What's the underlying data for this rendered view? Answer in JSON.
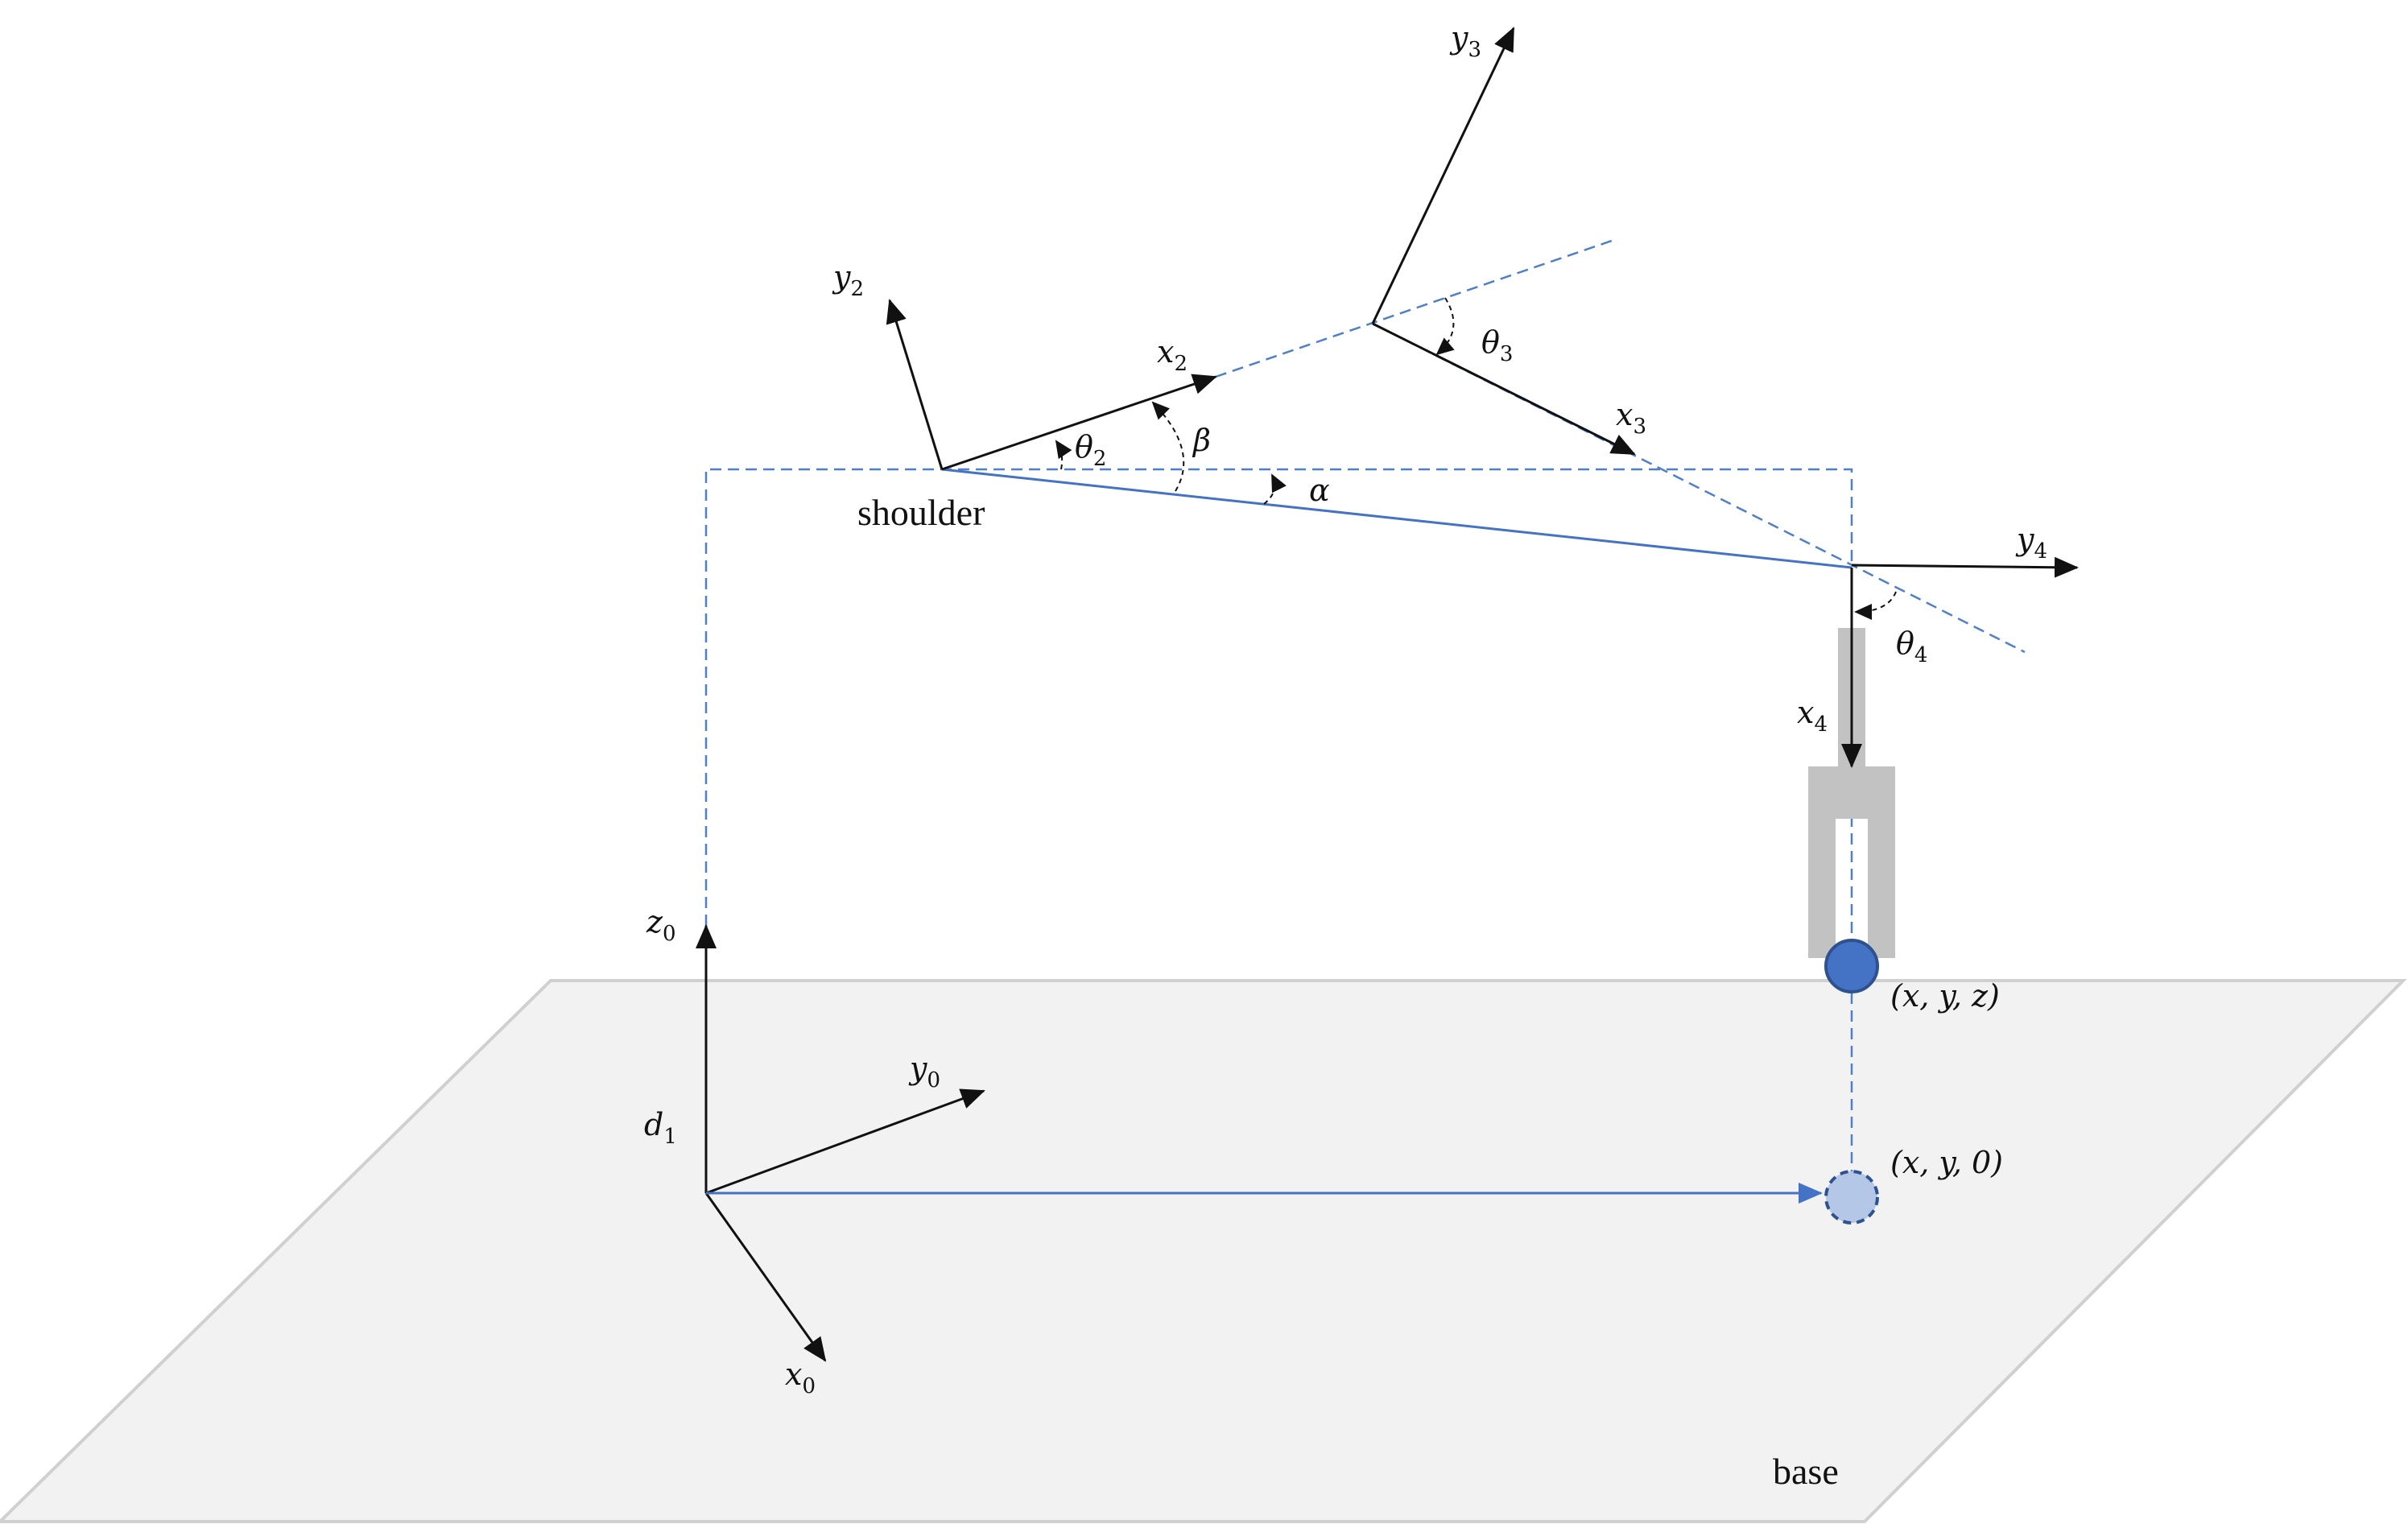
{
  "labels": {
    "shoulder": "shoulder",
    "base": "base",
    "alpha": "α",
    "beta": "β",
    "theta2": {
      "base": "θ",
      "sub": "2"
    },
    "theta3": {
      "base": "θ",
      "sub": "3"
    },
    "theta4": {
      "base": "θ",
      "sub": "4"
    },
    "x0": {
      "base": "x",
      "sub": "0"
    },
    "y0": {
      "base": "y",
      "sub": "0"
    },
    "z0": {
      "base": "z",
      "sub": "0"
    },
    "d1": {
      "base": "d",
      "sub": "1"
    },
    "x2": {
      "base": "x",
      "sub": "2"
    },
    "y2": {
      "base": "y",
      "sub": "2"
    },
    "x3": {
      "base": "x",
      "sub": "3"
    },
    "y3": {
      "base": "y",
      "sub": "3"
    },
    "x4": {
      "base": "x",
      "sub": "4"
    },
    "y4": {
      "base": "y",
      "sub": "4"
    },
    "point_xyz": "(x, y, z)",
    "point_xy0": "(x, y, 0)"
  },
  "colors": {
    "line_black": "#111111",
    "line_blue": "#4472c4",
    "dash_blue": "#4f7fc8",
    "plane_fill": "#f2f2f2",
    "plane_edge": "#d0d0d0",
    "gripper": "#c2c2c2",
    "endpoint_fill": "#4472c4",
    "endpoint_edge": "#2f528f",
    "projection_fill": "#b4c7e7"
  }
}
